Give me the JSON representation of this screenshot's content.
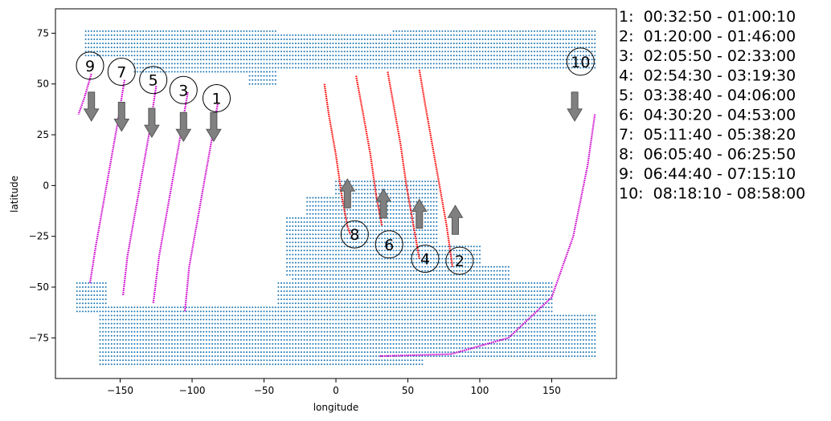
{
  "chart_data": {
    "type": "scatter",
    "xlabel": "longitude",
    "ylabel": "latitude",
    "xlim": [
      -195,
      195
    ],
    "ylim": [
      -95,
      87
    ],
    "xticks": [
      -150,
      -100,
      -50,
      0,
      50,
      100,
      150
    ],
    "yticks": [
      -75,
      -50,
      -25,
      0,
      25,
      50,
      75
    ],
    "grid": false,
    "colors": {
      "map_dots": "#1f77b4",
      "track_descending": "#cc00cc",
      "track_ascending": "#ff0000",
      "arrow_fill": "#808080",
      "arrow_edge": "#555555"
    },
    "map_regions": [
      {
        "lon": [
          -175,
          180
        ],
        "lat": [
          40,
          77
        ],
        "note": "northern landmass"
      },
      {
        "lon": [
          -35,
          120
        ],
        "lat": [
          -75,
          3
        ],
        "note": "southern landmass"
      },
      {
        "lon": [
          -180,
          180
        ],
        "lat": [
          -88,
          -48
        ],
        "note": "southern band"
      }
    ],
    "passes": [
      {
        "id": "1",
        "label": "1",
        "time": "1:  00:32:50 - 01:00:10",
        "color": "#cc00cc",
        "direction": "down",
        "track": [
          [
            -82,
            41
          ],
          [
            -87,
            20
          ],
          [
            -92,
            0
          ],
          [
            -97,
            -20
          ],
          [
            -102,
            -40
          ],
          [
            -105,
            -62
          ]
        ],
        "marker": [
          -83,
          43
        ],
        "arrow": [
          -85,
          36
        ]
      },
      {
        "id": "2",
        "label": "2",
        "time": "2:  01:20:00 - 01:46:00",
        "color": "#ff0000",
        "direction": "up",
        "track": [
          [
            58,
            57
          ],
          [
            62,
            40
          ],
          [
            67,
            20
          ],
          [
            72,
            0
          ],
          [
            77,
            -20
          ],
          [
            81,
            -40
          ]
        ],
        "marker": [
          86,
          -37
        ],
        "arrow": [
          83,
          -24
        ]
      },
      {
        "id": "3",
        "label": "3",
        "time": "3:  02:05:50 - 02:33:00",
        "color": "#cc00cc",
        "direction": "down",
        "track": [
          [
            -103,
            46
          ],
          [
            -108,
            25
          ],
          [
            -113,
            5
          ],
          [
            -118,
            -15
          ],
          [
            -123,
            -35
          ],
          [
            -127,
            -58
          ]
        ],
        "marker": [
          -106,
          47
        ],
        "arrow": [
          -106,
          36
        ]
      },
      {
        "id": "4",
        "label": "4",
        "time": "4:  02:54:30 - 03:19:30",
        "color": "#ff0000",
        "direction": "up",
        "track": [
          [
            36,
            56
          ],
          [
            40,
            40
          ],
          [
            45,
            20
          ],
          [
            49,
            0
          ],
          [
            54,
            -20
          ],
          [
            58,
            -36
          ]
        ],
        "marker": [
          62,
          -36
        ],
        "arrow": [
          58,
          -21
        ]
      },
      {
        "id": "5",
        "label": "5",
        "time": "5:  03:38:40 - 04:06:00",
        "color": "#cc00cc",
        "direction": "down",
        "track": [
          [
            -125,
            49
          ],
          [
            -130,
            25
          ],
          [
            -135,
            5
          ],
          [
            -140,
            -15
          ],
          [
            -145,
            -35
          ],
          [
            -148,
            -54
          ]
        ],
        "marker": [
          -127,
          52
        ],
        "arrow": [
          -128,
          38
        ]
      },
      {
        "id": "6",
        "label": "6",
        "time": "6:  04:30:20 - 04:53:00",
        "color": "#ff0000",
        "direction": "up",
        "track": [
          [
            14,
            54
          ],
          [
            19,
            35
          ],
          [
            24,
            15
          ],
          [
            28,
            -5
          ],
          [
            32,
            -20
          ]
        ],
        "marker": [
          37,
          -29
        ],
        "arrow": [
          33,
          -16
        ]
      },
      {
        "id": "7",
        "label": "7",
        "time": "7:  05:11:40 - 05:38:20",
        "color": "#cc00cc",
        "direction": "down",
        "track": [
          [
            -147,
            52
          ],
          [
            -152,
            30
          ],
          [
            -157,
            10
          ],
          [
            -162,
            -10
          ],
          [
            -167,
            -30
          ],
          [
            -171,
            -48
          ]
        ],
        "marker": [
          -149,
          56
        ],
        "arrow": [
          -149,
          41
        ]
      },
      {
        "id": "8",
        "label": "8",
        "time": "8:  06:05:40 - 06:25:50",
        "color": "#ff0000",
        "direction": "up",
        "track": [
          [
            -8,
            50
          ],
          [
            -5,
            35
          ],
          [
            0,
            15
          ],
          [
            4,
            -5
          ],
          [
            8,
            -20
          ],
          [
            10,
            -24
          ]
        ],
        "marker": [
          13,
          -24
        ],
        "arrow": [
          8,
          -11
        ]
      },
      {
        "id": "9",
        "label": "9",
        "time": "9:  06:44:40 - 07:15:10",
        "color": "#cc00cc",
        "direction": "down",
        "track": [
          [
            -170,
            55
          ],
          [
            -175,
            43
          ],
          [
            -179,
            35
          ]
        ],
        "marker": [
          -171,
          59
        ],
        "arrow": [
          -170,
          46
        ]
      },
      {
        "id": "10",
        "label": "10",
        "time": "10:  08:18:10 - 08:58:00",
        "color": "#cc00cc",
        "direction": "down",
        "track": [
          [
            180,
            35
          ],
          [
            175,
            10
          ],
          [
            165,
            -25
          ],
          [
            150,
            -55
          ],
          [
            120,
            -75
          ],
          [
            80,
            -83
          ],
          [
            30,
            -84
          ]
        ],
        "marker": [
          170,
          61
        ],
        "arrow": [
          166,
          46
        ]
      }
    ]
  }
}
